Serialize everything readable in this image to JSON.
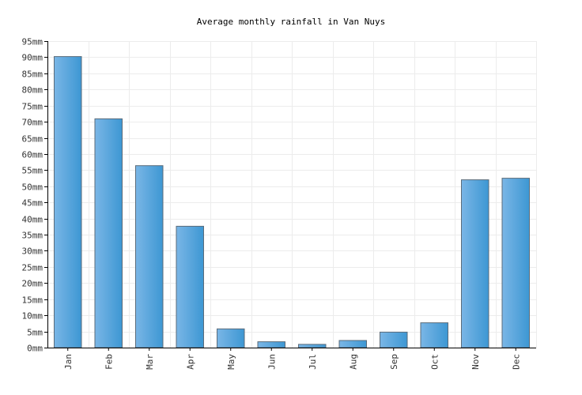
{
  "chart_data": {
    "type": "bar",
    "title": "Average monthly rainfall in Van Nuys",
    "xlabel": "",
    "ylabel": "",
    "categories": [
      "Jan",
      "Feb",
      "Mar",
      "Apr",
      "May",
      "Jun",
      "Jul",
      "Aug",
      "Sep",
      "Oct",
      "Nov",
      "Dec"
    ],
    "values": [
      90.2,
      70.9,
      56.4,
      37.6,
      5.8,
      1.8,
      1.0,
      2.2,
      4.8,
      7.7,
      52.0,
      52.5
    ],
    "unit_suffix": "mm",
    "ylim": [
      0,
      95
    ],
    "ytick_step": 5,
    "grid": true,
    "legend": "none",
    "colors": {
      "bar_left": "#7ab6e6",
      "bar_right": "#3d97d3",
      "bar_border": "#5a6b7a",
      "grid": "#ececec",
      "axis": "#000000"
    }
  }
}
